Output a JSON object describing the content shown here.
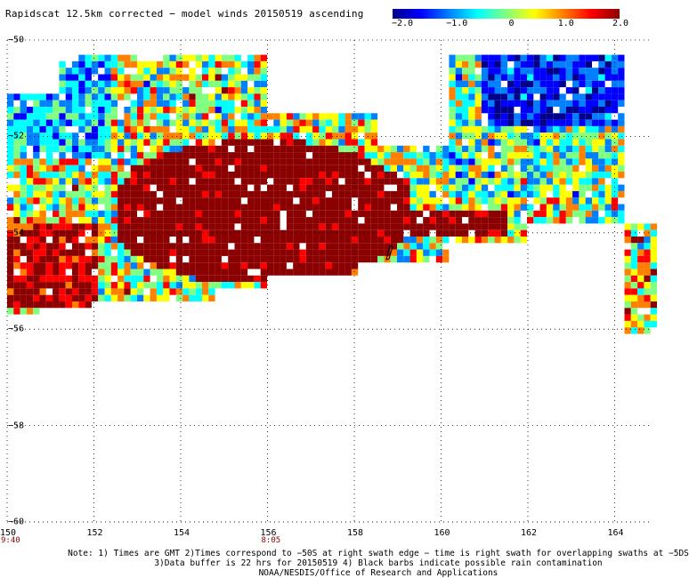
{
  "title": "Rapidscat 12.5km corrected − model winds 20150519 ascending",
  "colorbar": {
    "ticks": [
      "−2.0",
      "−1.0",
      "0",
      "1.0",
      "2.0"
    ],
    "range": [
      -2.0,
      2.0
    ],
    "colors": [
      "#00008b",
      "#0000ff",
      "#0080ff",
      "#00ffff",
      "#80ff80",
      "#ffff00",
      "#ff8000",
      "#ff0000",
      "#8b0000"
    ]
  },
  "axes": {
    "x_ticks": [
      "150",
      "152",
      "154",
      "156",
      "158",
      "160",
      "162",
      "164"
    ],
    "y_ticks": [
      "−50",
      "−52",
      "−54",
      "−56",
      "−58",
      "−60"
    ],
    "lon_range": [
      150,
      165
    ],
    "lat_range": [
      -60,
      -50
    ],
    "grid": "dotted"
  },
  "time_labels": [
    {
      "text": "9:40",
      "lon": 150
    },
    {
      "text": "8:05",
      "lon": 156
    }
  ],
  "notes": [
    "Note: 1) Times are GMT 2)Times correspond to −50S at right swath edge − time is right swath for overlapping swaths at −5DS",
    "3)Data buffer is 22 hrs for 20150519 4) Black barbs indicate possible rain contamination",
    "NOAA/NESDIS/Office of Research and Applications"
  ]
}
